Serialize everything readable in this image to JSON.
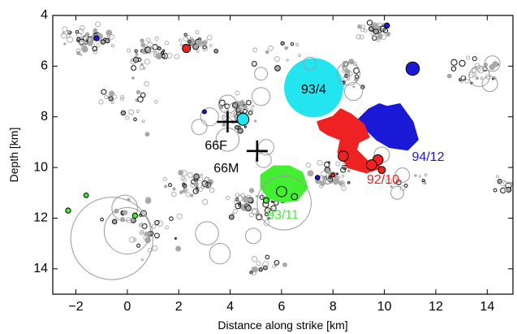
{
  "chart_data": {
    "type": "scatter",
    "title": "",
    "xlabel": "Distance along strike [km]",
    "ylabel": "Depth [km]",
    "xlim": [
      -2.9,
      15.0
    ],
    "ylim": [
      15.0,
      4.0
    ],
    "y_inverted": true,
    "xticks": [
      -2,
      0,
      2,
      4,
      6,
      8,
      10,
      12,
      14
    ],
    "xtick_labels": [
      "−2",
      "0",
      "2",
      "4",
      "6",
      "8",
      "10",
      "12",
      "14"
    ],
    "yticks": [
      4,
      6,
      8,
      10,
      12,
      14
    ],
    "ytick_labels": [
      "4",
      "6",
      "8",
      "10",
      "12",
      "14"
    ],
    "grid": false,
    "colors": {
      "background_events": "#a8a8a8",
      "relocated_events": "#000000",
      "seq_93_4": "#22e5f0",
      "seq_94_12": "#1a1ad6",
      "seq_92_10": "#ee2222",
      "seq_93_11": "#44ee33"
    },
    "annotations": [
      {
        "text": "93/4",
        "x": 7.25,
        "y": 6.95,
        "color": "#000000"
      },
      {
        "text": "94/12",
        "x": 11.7,
        "y": 9.6,
        "color": "#1a1ad6"
      },
      {
        "text": "92/10",
        "x": 9.95,
        "y": 10.5,
        "color": "#ee2222"
      },
      {
        "text": "93/11",
        "x": 6.05,
        "y": 11.9,
        "color": "#44ee33"
      },
      {
        "text": "66F",
        "x": 3.45,
        "y": 9.15,
        "color": "#000000"
      },
      {
        "text": "66M",
        "x": 3.85,
        "y": 10.05,
        "color": "#000000"
      }
    ],
    "hypocenters": [
      {
        "name": "66F",
        "x": 3.9,
        "y": 8.2
      },
      {
        "name": "66M",
        "x": 5.05,
        "y": 9.35
      }
    ],
    "slip_patches": [
      {
        "name": "93/4",
        "color": "#22e5f0",
        "shape": "circle",
        "cx": 7.25,
        "cy": 6.85,
        "r": 1.15
      },
      {
        "name": "94/12",
        "color": "#1a1ad6",
        "polygon": [
          [
            9.0,
            8.1
          ],
          [
            9.4,
            7.7
          ],
          [
            9.8,
            7.5
          ],
          [
            10.1,
            7.6
          ],
          [
            10.6,
            7.5
          ],
          [
            11.1,
            8.2
          ],
          [
            11.3,
            8.9
          ],
          [
            10.9,
            9.3
          ],
          [
            10.2,
            9.2
          ],
          [
            9.7,
            8.9
          ],
          [
            9.3,
            8.5
          ]
        ]
      },
      {
        "name": "92/10",
        "color": "#ee2222",
        "polygon": [
          [
            7.4,
            8.2
          ],
          [
            8.0,
            8.0
          ],
          [
            8.3,
            7.7
          ],
          [
            8.7,
            7.9
          ],
          [
            9.2,
            8.3
          ],
          [
            9.4,
            8.8
          ],
          [
            9.0,
            9.0
          ],
          [
            8.9,
            9.3
          ],
          [
            9.4,
            9.8
          ],
          [
            9.9,
            10.0
          ],
          [
            9.3,
            10.2
          ],
          [
            8.6,
            10.0
          ],
          [
            8.2,
            9.4
          ],
          [
            8.3,
            8.9
          ],
          [
            7.8,
            8.7
          ],
          [
            7.5,
            8.5
          ]
        ]
      },
      {
        "name": "93/11",
        "color": "#44ee33",
        "polygon": [
          [
            5.2,
            10.3
          ],
          [
            5.7,
            9.95
          ],
          [
            6.3,
            9.95
          ],
          [
            6.8,
            10.2
          ],
          [
            7.0,
            10.8
          ],
          [
            6.6,
            11.3
          ],
          [
            6.0,
            11.35
          ],
          [
            5.5,
            11.2
          ],
          [
            5.2,
            10.8
          ]
        ]
      }
    ],
    "open_circle_events": [
      {
        "x": 6.1,
        "y": 11.4,
        "r": 1.05
      },
      {
        "x": -0.6,
        "y": 12.8,
        "r": 1.6
      },
      {
        "x": -0.1,
        "y": 11.6,
        "r": 0.5
      },
      {
        "x": 0.0,
        "y": 12.5,
        "r": 0.9
      },
      {
        "x": 8.6,
        "y": 6.3,
        "r": 0.45
      },
      {
        "x": 8.8,
        "y": 7.0,
        "r": 0.35
      },
      {
        "x": 4.3,
        "y": 7.8,
        "r": 0.4
      },
      {
        "x": 3.9,
        "y": 7.5,
        "r": 0.35
      },
      {
        "x": 5.2,
        "y": 7.2,
        "r": 0.35
      },
      {
        "x": 3.2,
        "y": 8.0,
        "r": 0.35
      },
      {
        "x": 3.9,
        "y": 8.9,
        "r": 0.45
      },
      {
        "x": 5.4,
        "y": 9.2,
        "r": 0.3
      },
      {
        "x": 5.3,
        "y": 9.7,
        "r": 0.3
      },
      {
        "x": 2.8,
        "y": 8.4,
        "r": 0.3
      },
      {
        "x": 3.1,
        "y": 12.6,
        "r": 0.45
      },
      {
        "x": 3.6,
        "y": 13.4,
        "r": 0.4
      },
      {
        "x": 13.7,
        "y": 6.4,
        "r": 0.4
      },
      {
        "x": 14.2,
        "y": 5.9,
        "r": 0.3
      },
      {
        "x": 14.1,
        "y": 6.7,
        "r": 0.3
      },
      {
        "x": 4.9,
        "y": 12.7,
        "r": 0.3
      },
      {
        "x": 9.9,
        "y": 9.5,
        "r": 0.3
      },
      {
        "x": 10.7,
        "y": 10.3,
        "r": 0.28
      },
      {
        "x": 10.5,
        "y": 11.0,
        "r": 0.25
      },
      {
        "x": 5.2,
        "y": 6.3,
        "r": 0.25
      },
      {
        "x": 7.1,
        "y": 5.9,
        "r": 0.25
      }
    ],
    "filled_events": [
      {
        "x": 11.1,
        "y": 6.1,
        "r": 0.26,
        "color": "#1a1ad6"
      },
      {
        "x": 4.5,
        "y": 8.1,
        "r": 0.23,
        "color": "#22e5f0"
      },
      {
        "x": 2.3,
        "y": 5.3,
        "r": 0.16,
        "color": "#ee2222"
      },
      {
        "x": 6.0,
        "y": 10.95,
        "r": 0.2,
        "color": "#44ee33"
      },
      {
        "x": 8.4,
        "y": 9.55,
        "r": 0.2,
        "color": "#ee2222"
      },
      {
        "x": 9.75,
        "y": 9.7,
        "r": 0.2,
        "color": "#ee2222"
      },
      {
        "x": 9.5,
        "y": 9.9,
        "r": 0.2,
        "color": "#ee2222"
      },
      {
        "x": 9.9,
        "y": 10.1,
        "r": 0.14,
        "color": "#ee2222"
      },
      {
        "x": 6.5,
        "y": 11.15,
        "r": 0.12,
        "color": "#44ee33"
      },
      {
        "x": 5.4,
        "y": 11.3,
        "r": 0.11,
        "color": "#44ee33"
      },
      {
        "x": 0.3,
        "y": 11.9,
        "r": 0.1,
        "color": "#44ee33"
      },
      {
        "x": -2.3,
        "y": 11.7,
        "r": 0.1,
        "color": "#44ee33"
      },
      {
        "x": -1.6,
        "y": 11.1,
        "r": 0.09,
        "color": "#44ee33"
      },
      {
        "x": -1.2,
        "y": 4.9,
        "r": 0.1,
        "color": "#1a1ad6"
      },
      {
        "x": 10.1,
        "y": 4.4,
        "r": 0.1,
        "color": "#1a1ad6"
      },
      {
        "x": 3.0,
        "y": 7.8,
        "r": 0.08,
        "color": "#1a1ad6"
      },
      {
        "x": 7.4,
        "y": 10.4,
        "r": 0.09,
        "color": "#1a1ad6"
      },
      {
        "x": 8.0,
        "y": 10.3,
        "r": 0.08,
        "color": "#ee2222"
      }
    ]
  }
}
